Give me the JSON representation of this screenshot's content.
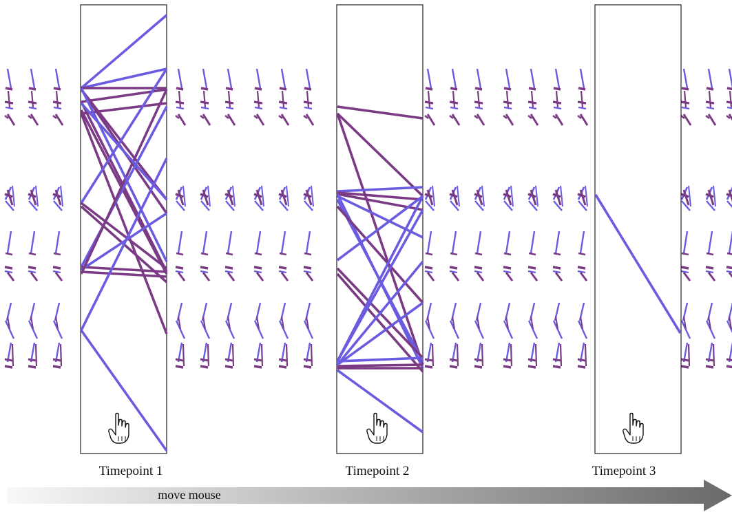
{
  "timepoints": [
    {
      "label": "Timepoint 1"
    },
    {
      "label": "Timepoint 2"
    },
    {
      "label": "Timepoint 3"
    }
  ],
  "arrow": {
    "label": "move mouse"
  },
  "icons": {
    "cursor": "hand-pointer-icon",
    "arrow": "right-arrow-icon"
  },
  "colors": {
    "line_blue": "#6a5be0",
    "line_purple": "#7a3a84",
    "line_red_edge": "#c0304a",
    "frame": "#222222",
    "arrow_dark": "#6e6e6e",
    "arrow_light": "#f4f4f4"
  }
}
